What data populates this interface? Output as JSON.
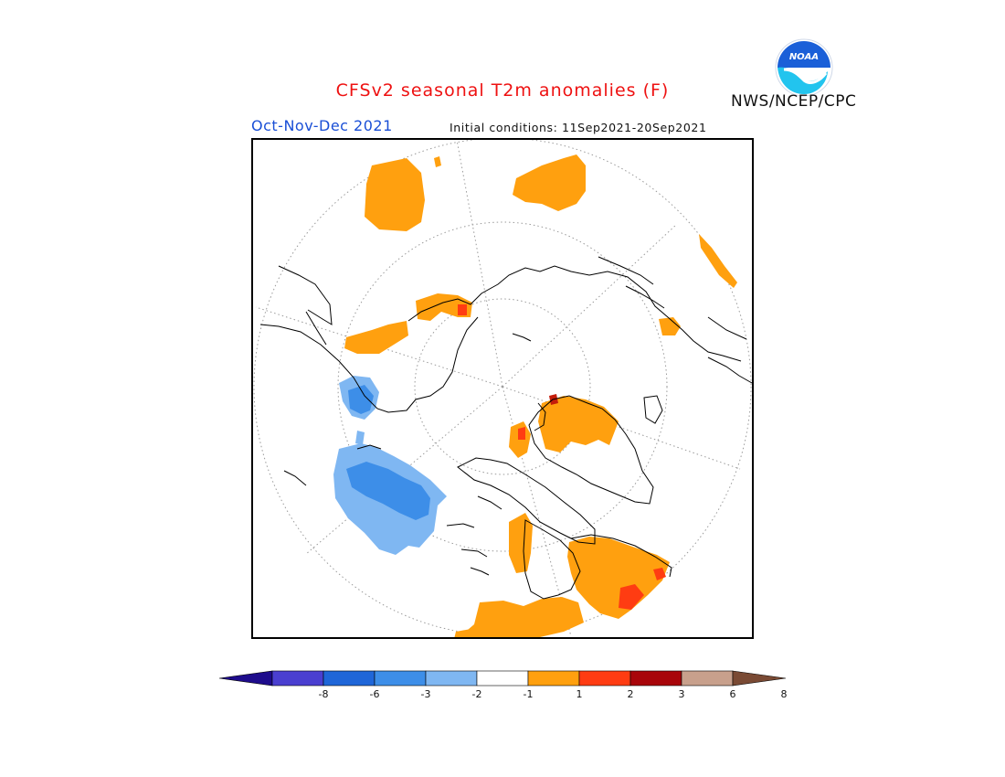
{
  "header": {
    "title": "CFSv2 seasonal T2m anomalies (F)",
    "agency": "NWS/NCEP/CPC",
    "season": "Oct-Nov-Dec 2021",
    "initial_conditions": "Initial conditions: 11Sep2021-20Sep2021"
  },
  "logo": {
    "text": "NOAA",
    "colors": {
      "sky": "#1a5fd8",
      "wave": "#22c4ee",
      "ring": "#ffffff"
    }
  },
  "map": {
    "projection": "north polar stereographic",
    "colors": {
      "coast": "#000000",
      "grid": "#9a9a9a",
      "frame": "#000000"
    }
  },
  "legend": {
    "tick_labels": [
      "-8",
      "-6",
      "-3",
      "-2",
      "-1",
      "1",
      "2",
      "3",
      "6",
      "8"
    ],
    "colors": [
      "#1e0c8c",
      "#4a3fd0",
      "#1f66d8",
      "#3d8ee8",
      "#7fb7f2",
      "#ffffff",
      "#ffa00f",
      "#ff3c12",
      "#a8050a",
      "#c8a08c",
      "#7a4a34"
    ]
  },
  "colors": {
    "warm1": "#ffa00f",
    "warm2": "#ff3c12",
    "warm3": "#c41c0a",
    "cool1": "#7fb7f2",
    "cool2": "#3d8ee8"
  }
}
